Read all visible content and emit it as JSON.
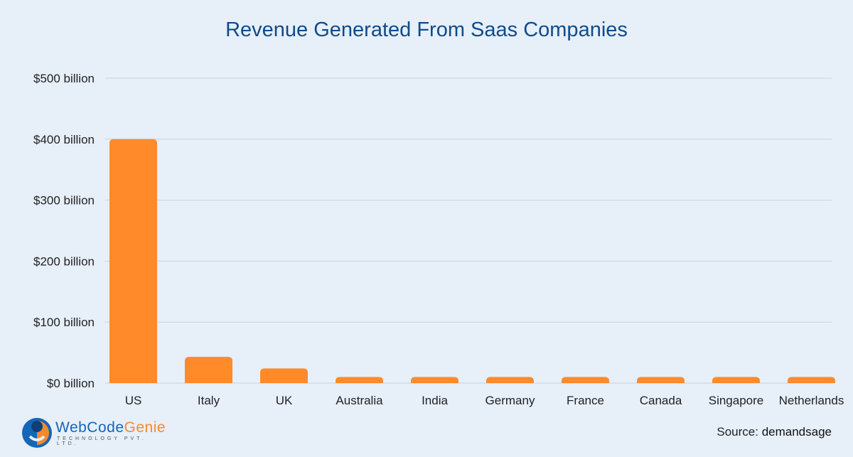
{
  "chart_data": {
    "type": "bar",
    "title": "Revenue Generated From Saas Companies",
    "categories": [
      "US",
      "Italy",
      "UK",
      "Australia",
      "India",
      "Germany",
      "France",
      "Canada",
      "Singapore",
      "Netherlands"
    ],
    "values": [
      400,
      43,
      24,
      10,
      10,
      10,
      10,
      10,
      10,
      10
    ],
    "unit": "billion USD",
    "ylim": [
      0,
      500
    ],
    "yticks": [
      0,
      100,
      200,
      300,
      400,
      500
    ],
    "ytick_labels": [
      "$0 billion",
      "$100 billion",
      "$200 billion",
      "$300 billion",
      "$400 billion",
      "$500 billion"
    ],
    "grid": true,
    "bar_color": "#ff8a2a"
  },
  "source": {
    "label": "Source:",
    "value": "demandsage"
  },
  "logo": {
    "name_part1": "WebCode",
    "name_part2": "Genie",
    "tagline": "TECHNOLOGY PVT. LTD."
  }
}
